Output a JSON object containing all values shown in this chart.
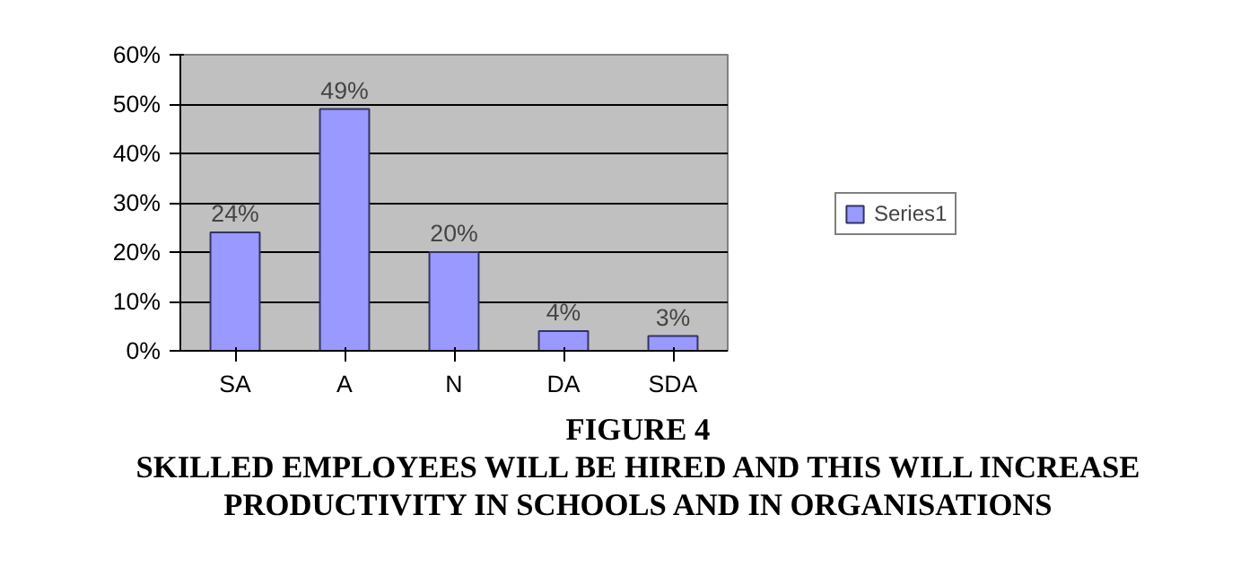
{
  "chart_data": {
    "type": "bar",
    "title": "FIGURE 4",
    "subtitle": "SKILLED EMPLOYEES WILL BE HIRED AND THIS WILL INCREASE\nPRODUCTIVITY IN SCHOOLS AND IN ORGANISATIONS",
    "categories": [
      "SA",
      "A",
      "N",
      "DA",
      "SDA"
    ],
    "series": [
      {
        "name": "Series1",
        "color": "#9999ff",
        "values": [
          24,
          49,
          20,
          4,
          3
        ],
        "value_labels": [
          "24%",
          "49%",
          "20%",
          "4%",
          "3%"
        ]
      }
    ],
    "ylim": [
      0,
      60
    ],
    "yticks": [
      {
        "value": 0,
        "label": "0%"
      },
      {
        "value": 10,
        "label": "10%"
      },
      {
        "value": 20,
        "label": "20%"
      },
      {
        "value": 30,
        "label": "30%"
      },
      {
        "value": 40,
        "label": "40%"
      },
      {
        "value": 50,
        "label": "50%"
      },
      {
        "value": 60,
        "label": "60%"
      }
    ],
    "grid": "y",
    "legend": "right"
  }
}
